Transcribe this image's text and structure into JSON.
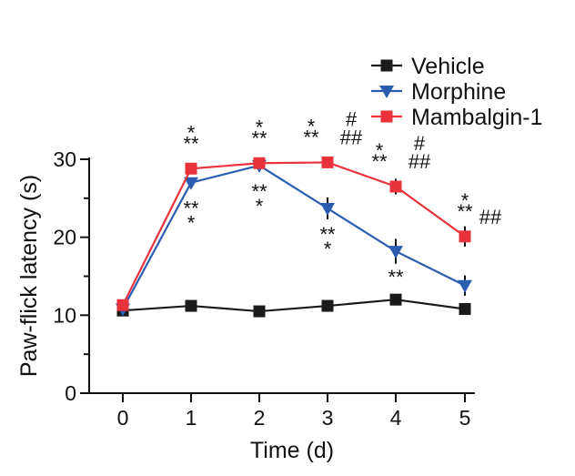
{
  "chart_data": {
    "type": "line",
    "xlabel": "Time (d)",
    "ylabel": "Paw-flick latency (s)",
    "ylim": [
      0,
      30
    ],
    "yticks": [
      0,
      10,
      20,
      30
    ],
    "x": [
      0,
      1,
      2,
      3,
      4,
      5
    ],
    "xticks": [
      "0",
      "1",
      "2",
      "3",
      "4",
      "5"
    ],
    "legend_position": "top-right",
    "series": [
      {
        "name": "Vehicle",
        "color": "#1a1a1a",
        "marker": "square",
        "values": [
          10.6,
          11.2,
          10.5,
          11.2,
          12.0,
          10.8
        ],
        "errors": [
          0.4,
          0.4,
          0.4,
          0.5,
          0.6,
          0.7
        ]
      },
      {
        "name": "Morphine",
        "color": "#2a5db0",
        "marker": "triangle-down",
        "values": [
          10.8,
          27.0,
          29.2,
          23.7,
          18.2,
          13.8
        ],
        "errors": [
          0.4,
          0.6,
          0.3,
          1.4,
          1.6,
          1.3
        ]
      },
      {
        "name": "Mambalgin-1",
        "color": "#e8323c",
        "marker": "square",
        "values": [
          11.3,
          28.8,
          29.5,
          29.6,
          26.5,
          20.1
        ],
        "errors": [
          0.4,
          0.5,
          0.3,
          0.3,
          1.0,
          1.3
        ]
      }
    ],
    "annotations": [
      {
        "x": 1,
        "text": "*",
        "pos": "above",
        "line": 0
      },
      {
        "x": 1,
        "text": "**",
        "pos": "above",
        "line": 1
      },
      {
        "x": 1,
        "text": "**",
        "pos": "below",
        "line": 0
      },
      {
        "x": 1,
        "text": "*",
        "pos": "below",
        "line": 1
      },
      {
        "x": 2,
        "text": "*",
        "pos": "above",
        "line": 0
      },
      {
        "x": 2,
        "text": "**",
        "pos": "above",
        "line": 1
      },
      {
        "x": 2,
        "text": "**",
        "pos": "below",
        "line": 0
      },
      {
        "x": 2,
        "text": "*",
        "pos": "below",
        "line": 1
      },
      {
        "x": 3,
        "text": "*",
        "pos": "above-left",
        "line": 0
      },
      {
        "x": 3,
        "text": "**",
        "pos": "above-left",
        "line": 1
      },
      {
        "x": 3,
        "text": "#",
        "pos": "above-right",
        "line": 0
      },
      {
        "x": 3,
        "text": "##",
        "pos": "above-right",
        "line": 1
      },
      {
        "x": 3,
        "text": "**",
        "pos": "below",
        "line": 0
      },
      {
        "x": 3,
        "text": "*",
        "pos": "below",
        "line": 1
      },
      {
        "x": 4,
        "text": "*",
        "pos": "above-left",
        "line": 0
      },
      {
        "x": 4,
        "text": "**",
        "pos": "above-left",
        "line": 1
      },
      {
        "x": 4,
        "text": "#",
        "pos": "above-right",
        "line": 0
      },
      {
        "x": 4,
        "text": "##",
        "pos": "above-right",
        "line": 1
      },
      {
        "x": 4,
        "text": "**",
        "pos": "below",
        "line": 0
      },
      {
        "x": 5,
        "text": "*",
        "pos": "above",
        "line": 0
      },
      {
        "x": 5,
        "text": "**",
        "pos": "above",
        "line": 1
      },
      {
        "x": 5,
        "text": "##",
        "pos": "right",
        "line": 1
      }
    ]
  }
}
